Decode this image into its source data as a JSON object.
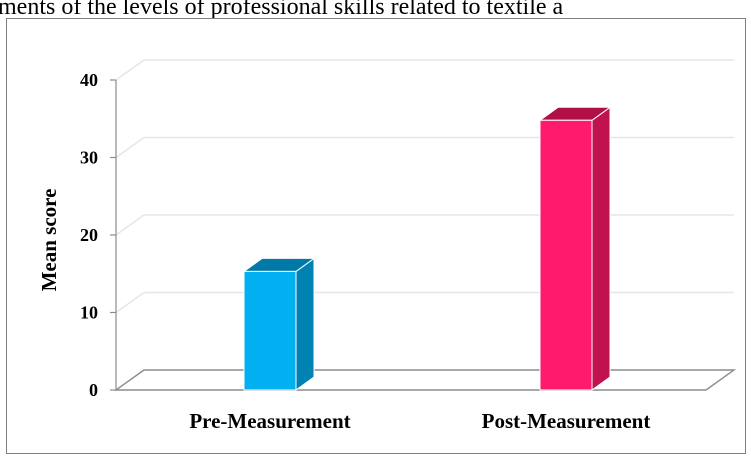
{
  "caption": "ments of the levels of professional skills related to textile a",
  "chart_data": {
    "type": "bar",
    "title": "",
    "xlabel": "",
    "ylabel": "Mean score",
    "categories": [
      "Pre-Measurement",
      "Post-Measurement"
    ],
    "values": [
      15.3,
      34.8
    ],
    "ylim": [
      0,
      40
    ],
    "yticks": [
      "0",
      "10",
      "20",
      "30",
      "40"
    ],
    "grid": true,
    "legend": "none",
    "colors": {
      "pre_front": "#00b0f0",
      "pre_side": "#0083b3",
      "pre_top": "#0079a8",
      "post_front": "#ff1a6e",
      "post_side": "#c0124f",
      "post_top": "#b00f47"
    }
  }
}
